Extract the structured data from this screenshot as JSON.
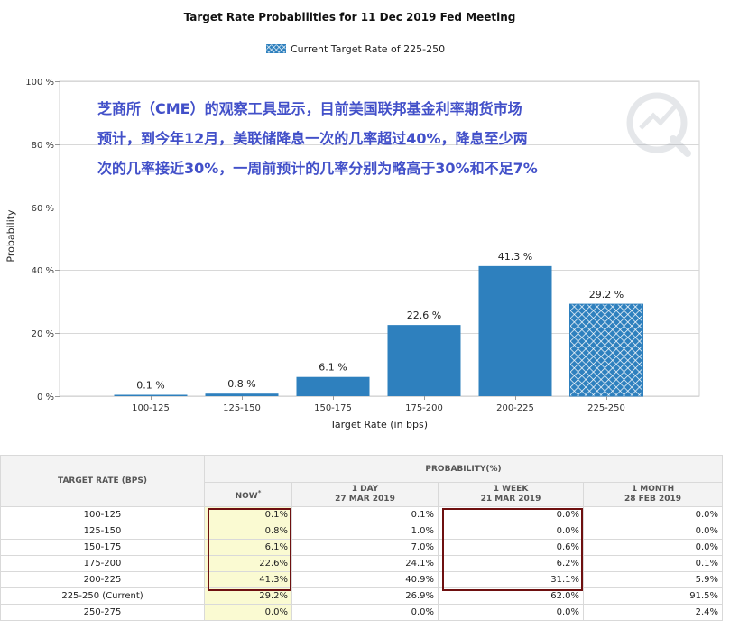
{
  "chart_data": {
    "type": "bar",
    "title": "Target Rate Probabilities for 11 Dec 2019 Fed Meeting",
    "legend_label": "Current Target Rate of 225-250",
    "categories": [
      "100-125",
      "125-150",
      "150-175",
      "175-200",
      "200-225",
      "225-250"
    ],
    "values": [
      0.1,
      0.8,
      6.1,
      22.6,
      41.3,
      29.2
    ],
    "value_labels": [
      "0.1 %",
      "0.8 %",
      "6.1 %",
      "22.6 %",
      "41.3 %",
      "29.2 %"
    ],
    "current_category": "225-250",
    "xlabel": "Target Rate (in bps)",
    "ylabel": "Probability",
    "ylim": [
      0,
      100
    ],
    "yticks": [
      0,
      20,
      40,
      60,
      80,
      100
    ],
    "ytick_labels": [
      "0 %",
      "20 %",
      "40 %",
      "60 %",
      "80 %",
      "100 %"
    ],
    "grid": true,
    "legend_position": "top-center",
    "colors": {
      "bar": "#2e80be",
      "current_pattern": "#2e80be",
      "grid": "#d8d8d8"
    }
  },
  "annotation": "芝商所（CME）的观察工具显示，目前美国联邦基金利率期货市场\n预计，到今年12月，美联储降息一次的几率超过40%，降息至少两\n次的几率接近30%，一周前预计的几率分别为略高于30%和不足7%",
  "table": {
    "header_rate": "TARGET RATE (BPS)",
    "header_prob": "PROBABILITY(%)",
    "columns": [
      {
        "line1": "NOW",
        "line2": "",
        "mark": "*"
      },
      {
        "line1": "1 DAY",
        "line2": "27 MAR 2019",
        "mark": ""
      },
      {
        "line1": "1 WEEK",
        "line2": "21 MAR 2019",
        "mark": ""
      },
      {
        "line1": "1 MONTH",
        "line2": "28 FEB 2019",
        "mark": ""
      }
    ],
    "rows": [
      {
        "rate": "100-125",
        "values": [
          "0.1%",
          "0.1%",
          "0.0%",
          "0.0%"
        ]
      },
      {
        "rate": "125-150",
        "values": [
          "0.8%",
          "1.0%",
          "0.0%",
          "0.0%"
        ]
      },
      {
        "rate": "150-175",
        "values": [
          "6.1%",
          "7.0%",
          "0.6%",
          "0.0%"
        ]
      },
      {
        "rate": "175-200",
        "values": [
          "22.6%",
          "24.1%",
          "6.2%",
          "0.1%"
        ]
      },
      {
        "rate": "200-225",
        "values": [
          "41.3%",
          "40.9%",
          "31.1%",
          "5.9%"
        ]
      },
      {
        "rate": "225-250 (Current)",
        "values": [
          "29.2%",
          "26.9%",
          "62.0%",
          "91.5%"
        ]
      },
      {
        "rate": "250-275",
        "values": [
          "0.0%",
          "0.0%",
          "0.0%",
          "2.4%"
        ]
      }
    ]
  }
}
